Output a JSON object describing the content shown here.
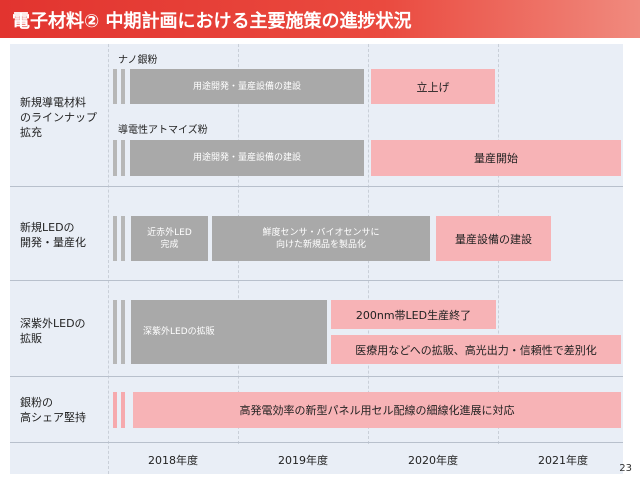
{
  "title": "電子材料② 中期計画における主要施策の進捗状況",
  "page_number": "23",
  "colors": {
    "title_red": "#e2342f",
    "gray_bar": "#a9a9a9",
    "pink_bar": "#f7b3b6",
    "panel_bg": "#e9eef6"
  },
  "rows": [
    {
      "label": "新規導電材料\nのラインナップ\n拡充",
      "subs": [
        {
          "name": "ナノ銀粉",
          "gray": "用途開発・量産設備の建設",
          "pink": "立上げ"
        },
        {
          "name": "導電性アトマイズ粉",
          "gray": "用途開発・量産設備の建設",
          "pink": "量産開始"
        }
      ]
    },
    {
      "label": "新規LEDの\n開発・量産化",
      "gray1": "近赤外LED\n完成",
      "gray2": "鮮度センサ・バイオセンサに\n向けた新規品を製品化",
      "pink": "量産設備の建設"
    },
    {
      "label": "深紫外LEDの\n拡販",
      "gray": "深紫外LEDの拡販",
      "pink1": "200nm帯LED生産終了",
      "pink2": "医療用などへの拡販、高光出力・信頼性で差別化"
    },
    {
      "label": "銀粉の\n高シェア堅持",
      "pink": "高発電効率の新型パネル用セル配線の細線化進展に対応"
    }
  ],
  "years": [
    "2018年度",
    "2019年度",
    "2020年度",
    "2021年度"
  ]
}
